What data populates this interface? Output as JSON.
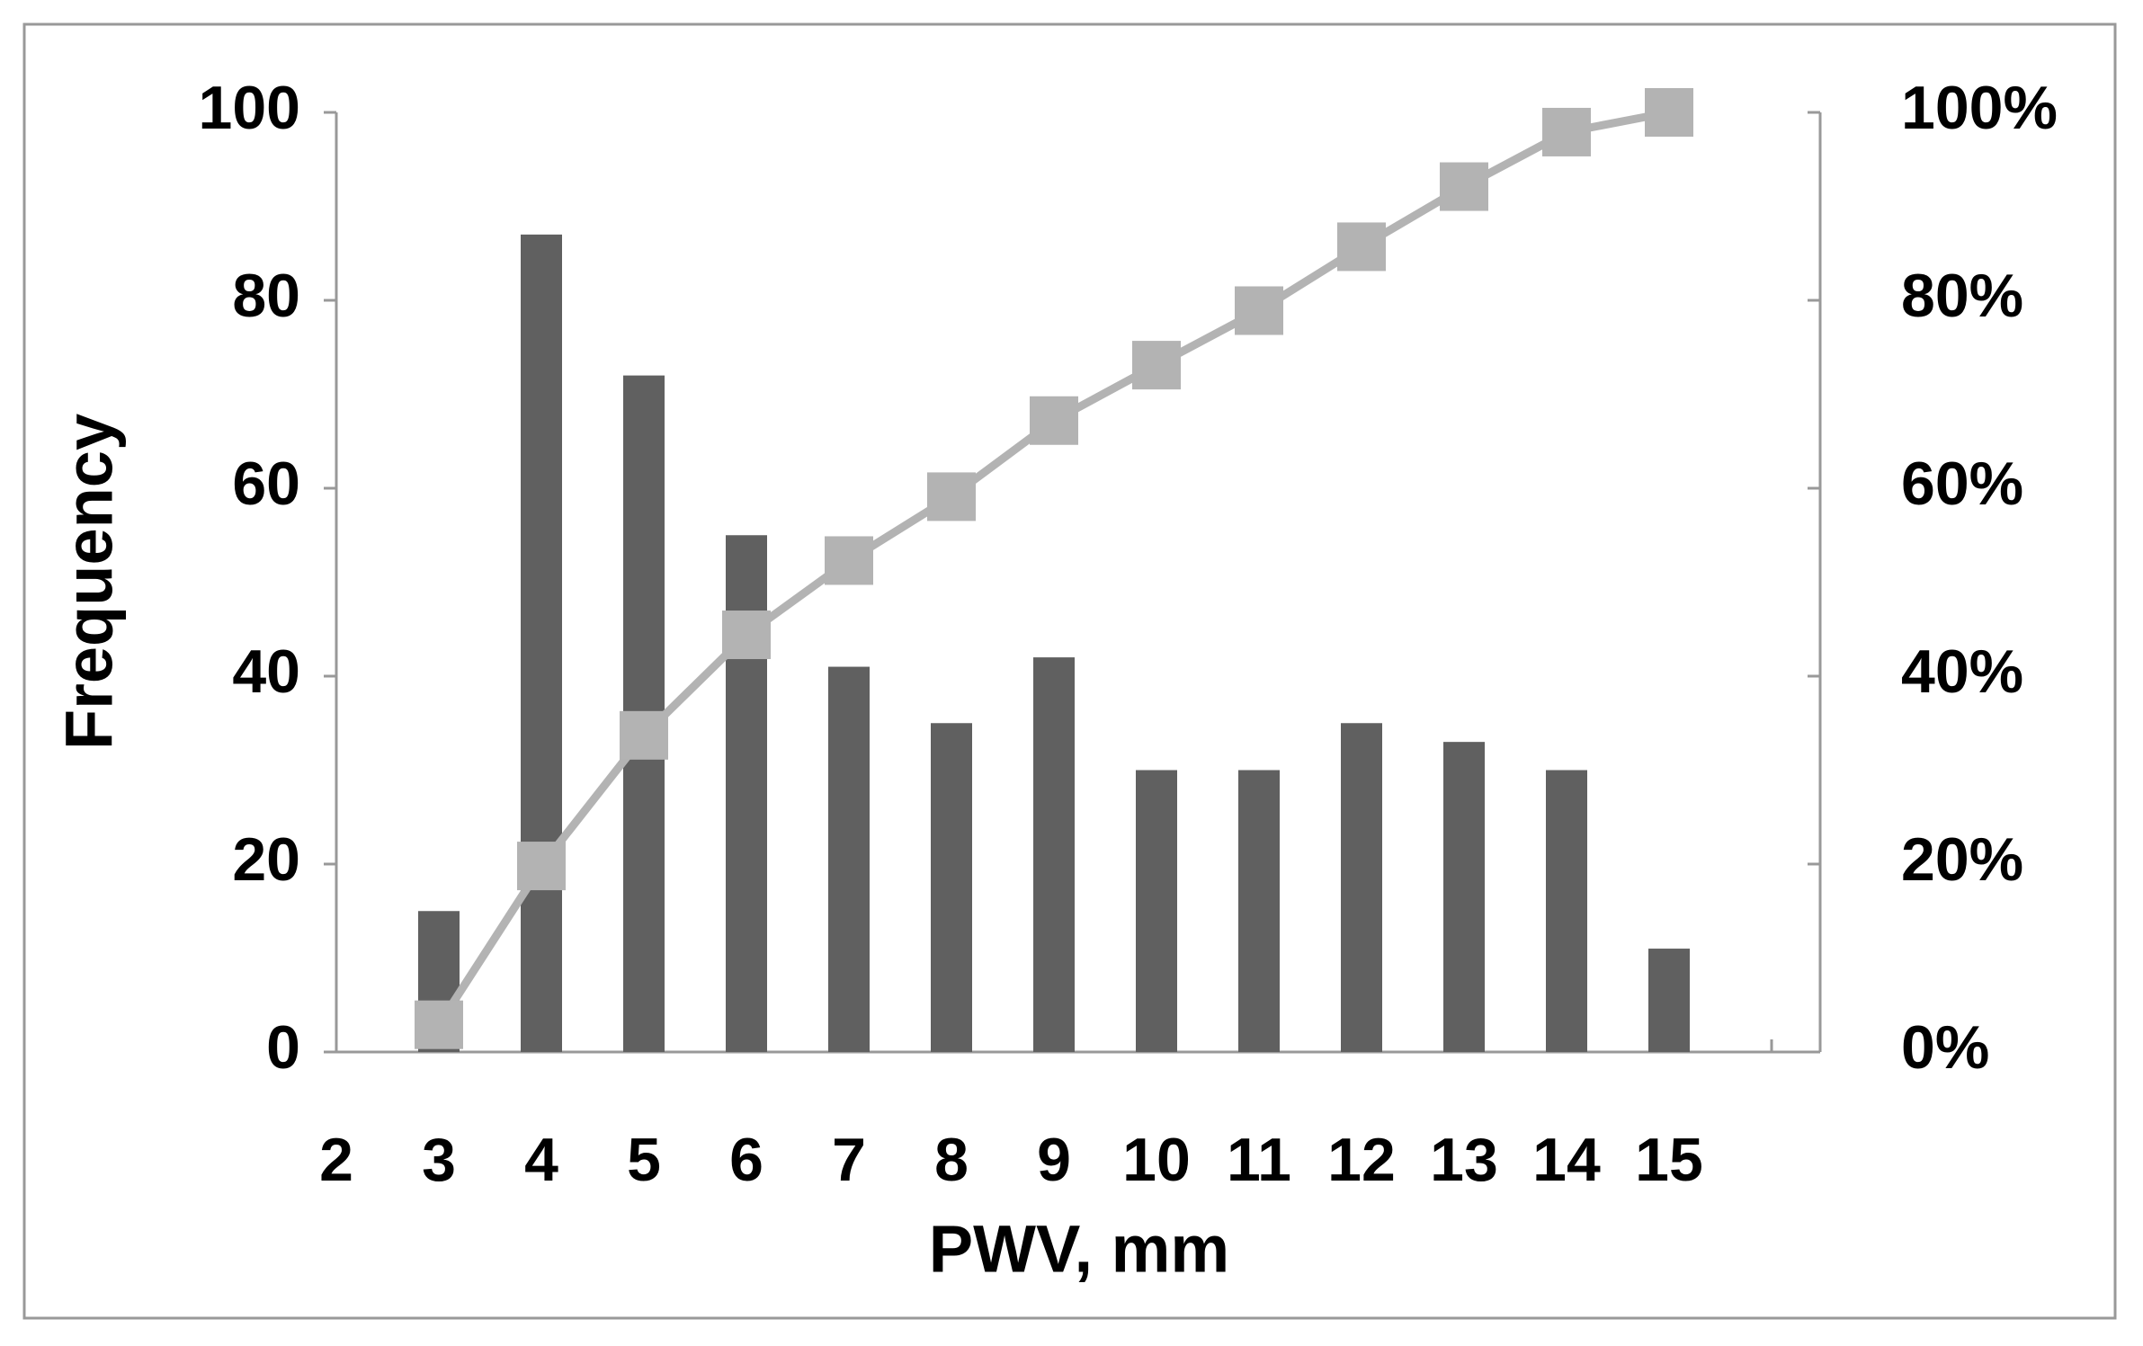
{
  "chart_data": {
    "type": "bar",
    "x_label": "PWV, mm",
    "y_label": "Frequency",
    "x": [
      3,
      4,
      5,
      6,
      7,
      8,
      9,
      10,
      11,
      12,
      13,
      14,
      15
    ],
    "series": [
      {
        "type": "bar",
        "color": "#606060",
        "values": [
          15,
          87,
          72,
          55,
          41,
          35,
          42,
          30,
          30,
          35,
          33,
          30,
          11
        ]
      },
      {
        "type": "line",
        "axis": "y2",
        "color": "#b3b3b3",
        "values": [
          2.9,
          19.8,
          33.7,
          44.4,
          52.3,
          59.1,
          67.2,
          73.1,
          78.9,
          85.7,
          92.1,
          97.9,
          100
        ]
      }
    ],
    "xlim": [
      2,
      16
    ],
    "xticks": [
      2,
      3,
      4,
      5,
      6,
      7,
      8,
      9,
      10,
      11,
      12,
      13,
      14,
      15
    ],
    "ylim": [
      0,
      100
    ],
    "yticks": [
      0,
      20,
      40,
      60,
      80,
      100
    ],
    "y2lim": [
      0,
      100
    ],
    "y2ticks": [
      {
        "value": 0,
        "label": "0%"
      },
      {
        "value": 20,
        "label": "20%"
      },
      {
        "value": 40,
        "label": "40%"
      },
      {
        "value": 60,
        "label": "60%"
      },
      {
        "value": 80,
        "label": "80%"
      },
      {
        "value": 100,
        "label": "100%"
      }
    ],
    "grid": false
  }
}
